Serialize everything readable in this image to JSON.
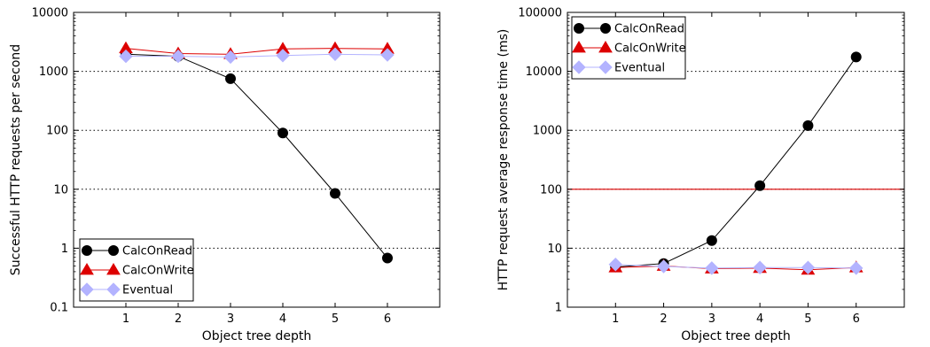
{
  "chart_data": [
    {
      "type": "line",
      "yscale": "log",
      "xlabel": "Object tree depth",
      "ylabel": "Successful HTTP requests per second",
      "xlim": [
        0,
        7
      ],
      "ylim": [
        0.1,
        10000
      ],
      "xticks": [
        "1",
        "2",
        "3",
        "4",
        "5",
        "6"
      ],
      "xtick_values": [
        1,
        2,
        3,
        4,
        5,
        6
      ],
      "yticks": [
        "0.1",
        "1",
        "10",
        "100",
        "1000",
        "10000"
      ],
      "ytick_values": [
        0.1,
        1,
        10,
        100,
        1000,
        10000
      ],
      "grid": "horizontal dotted",
      "legend_position": "bottom-left",
      "x": [
        1,
        2,
        3,
        4,
        5,
        6
      ],
      "series": [
        {
          "name": "CalcOnRead",
          "values": [
            1950,
            1800,
            750,
            90,
            8.5,
            0.68
          ],
          "color": "#000000",
          "marker": "circle"
        },
        {
          "name": "CalcOnWrite",
          "values": [
            2450,
            2000,
            1950,
            2400,
            2450,
            2400
          ],
          "color": "#dd0000",
          "marker": "triangle"
        },
        {
          "name": "Eventual",
          "values": [
            1800,
            1800,
            1750,
            1850,
            1950,
            1900
          ],
          "color": "#b3b3ff",
          "marker": "diamond"
        }
      ]
    },
    {
      "type": "line",
      "yscale": "log",
      "xlabel": "Object tree depth",
      "ylabel": "HTTP request average response time (ms)",
      "xlim": [
        0,
        7
      ],
      "ylim": [
        1,
        100000
      ],
      "xticks": [
        "1",
        "2",
        "3",
        "4",
        "5",
        "6"
      ],
      "xtick_values": [
        1,
        2,
        3,
        4,
        5,
        6
      ],
      "yticks": [
        "1",
        "10",
        "100",
        "1000",
        "10000",
        "100000"
      ],
      "ytick_values": [
        1,
        10,
        100,
        1000,
        10000,
        100000
      ],
      "grid": "horizontal dotted",
      "legend_position": "top-left",
      "reference_line": {
        "y": 100,
        "color": "#dd0000"
      },
      "x": [
        1,
        2,
        3,
        4,
        5,
        6
      ],
      "series": [
        {
          "name": "CalcOnRead",
          "values": [
            4.8,
            5.5,
            13.5,
            115,
            1200,
            17500
          ],
          "color": "#000000",
          "marker": "circle"
        },
        {
          "name": "CalcOnWrite",
          "values": [
            4.7,
            5.0,
            4.5,
            4.6,
            4.3,
            4.7
          ],
          "color": "#dd0000",
          "marker": "triangle"
        },
        {
          "name": "Eventual",
          "values": [
            5.3,
            4.9,
            4.6,
            4.7,
            4.7,
            4.6
          ],
          "color": "#b3b3ff",
          "marker": "diamond"
        }
      ]
    }
  ]
}
